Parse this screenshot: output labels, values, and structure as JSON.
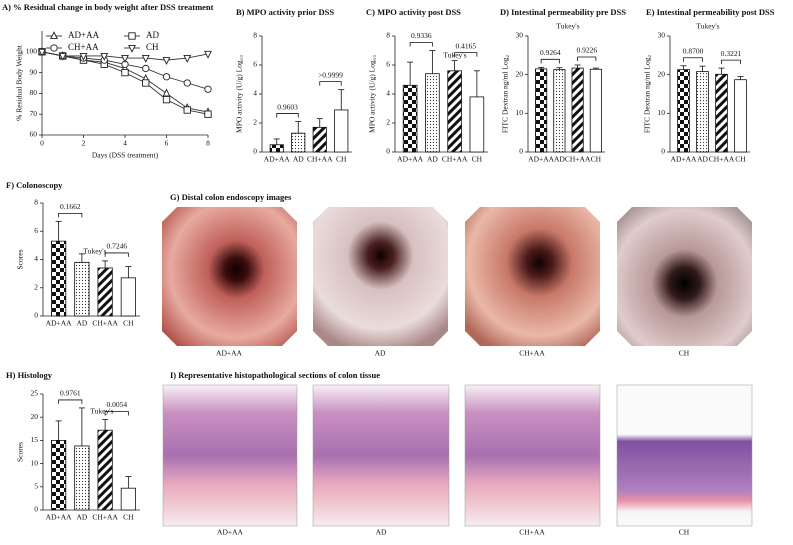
{
  "chart_data": [
    {
      "type": "line",
      "title": "A) % Residual change in body weight after DSS treatment",
      "x_label": "Days (DSS treatment)",
      "y_label": "% Residual Body Weight",
      "x": [
        0,
        1,
        2,
        3,
        4,
        5,
        6,
        7,
        8
      ],
      "xlim": [
        0,
        8
      ],
      "xticks": [
        0,
        2,
        4,
        6,
        8
      ],
      "ylim": [
        60,
        110
      ],
      "yticks": [
        60,
        70,
        80,
        90,
        100
      ],
      "series": [
        {
          "name": "AD+AA",
          "marker": "triangle",
          "color": "#333333",
          "values": [
            100,
            98,
            96,
            95,
            92,
            87,
            80,
            73,
            71
          ]
        },
        {
          "name": "AD",
          "marker": "square",
          "color": "#333333",
          "values": [
            100,
            98,
            96,
            94,
            90,
            85,
            77,
            72,
            70
          ]
        },
        {
          "name": "CH+AA",
          "marker": "circle",
          "color": "#333333",
          "values": [
            100,
            98,
            97,
            96,
            94,
            92,
            88,
            85,
            82
          ]
        },
        {
          "name": "CH",
          "marker": "triangle-down",
          "color": "#333333",
          "values": [
            100,
            98,
            98,
            98,
            97,
            97,
            96,
            97,
            99
          ]
        }
      ]
    },
    {
      "type": "bar",
      "title": "B) MPO activity prior DSS",
      "y_label": "MPO activity (U/g) Log₁₀",
      "categories": [
        "AD+AA",
        "AD",
        "CH+AA",
        "CH"
      ],
      "values": [
        0.5,
        1.3,
        1.7,
        2.9
      ],
      "errors": [
        0.4,
        0.8,
        0.6,
        1.4
      ],
      "ylim": [
        0,
        8
      ],
      "yticks": [
        0,
        2,
        4,
        6,
        8
      ],
      "patterns": [
        "checker",
        "dots",
        "stripes",
        "none"
      ],
      "comparisons": [
        "0.9603",
        ">0.9999"
      ]
    },
    {
      "type": "bar",
      "title": "C) MPO activity post DSS",
      "y_label": "MPO activity (U/g) Log₁₀",
      "categories": [
        "AD+AA",
        "AD",
        "CH+AA",
        "CH"
      ],
      "values": [
        4.6,
        5.4,
        5.6,
        3.8
      ],
      "errors": [
        1.6,
        1.6,
        0.7,
        1.8
      ],
      "ylim": [
        0,
        8
      ],
      "yticks": [
        0,
        2,
        4,
        6,
        8
      ],
      "patterns": [
        "checker",
        "dots",
        "stripes",
        "none"
      ],
      "comparisons": [
        "0.9336",
        "0.4165"
      ],
      "note": "Tukey's"
    },
    {
      "type": "bar",
      "title": "D) Intestinal permeability pre DSS",
      "y_label": "FITC Dextran ng/ml Log₂",
      "categories": [
        "AD+AA",
        "AD",
        "CH+AA",
        "CH"
      ],
      "values": [
        21.5,
        21.3,
        21.7,
        21.4
      ],
      "errors": [
        0.4,
        0.5,
        0.8,
        0.3
      ],
      "ylim": [
        0,
        30
      ],
      "yticks": [
        0,
        10,
        20,
        30
      ],
      "patterns": [
        "checker",
        "dots",
        "stripes",
        "none"
      ],
      "comparisons": [
        "0.9264",
        "0.9226"
      ],
      "note": "Tukey's"
    },
    {
      "type": "bar",
      "title": "E) Intestinal permeability post DSS",
      "y_label": "FITC Dextran ng/ml Log₂",
      "categories": [
        "AD+AA",
        "AD",
        "CH+AA",
        "CH"
      ],
      "values": [
        21.3,
        20.8,
        20.1,
        18.7
      ],
      "errors": [
        1,
        1.4,
        1.6,
        0.8
      ],
      "ylim": [
        0,
        30
      ],
      "yticks": [
        0,
        10,
        20,
        30
      ],
      "patterns": [
        "checker",
        "dots",
        "stripes",
        "none"
      ],
      "comparisons": [
        "0.8700",
        "0.3221"
      ],
      "note": "Tukey's"
    },
    {
      "type": "bar",
      "title": "F) Colonoscopy",
      "y_label": "Scores",
      "categories": [
        "AD+AA",
        "AD",
        "CH+AA",
        "CH"
      ],
      "values": [
        5.3,
        3.8,
        3.4,
        2.7
      ],
      "errors": [
        1.4,
        0.6,
        0.5,
        0.8
      ],
      "ylim": [
        0,
        8
      ],
      "yticks": [
        0,
        2,
        4,
        6,
        8
      ],
      "patterns": [
        "checker",
        "dots",
        "stripes",
        "none"
      ],
      "comparisons": [
        "0.1662",
        "0.7246"
      ],
      "note": "Tukey's"
    },
    {
      "type": "bar",
      "title": "H) Histology",
      "y_label": "Scores",
      "categories": [
        "AD+AA",
        "AD",
        "CH+AA",
        "CH"
      ],
      "values": [
        15,
        13.8,
        17.2,
        4.7
      ],
      "errors": [
        4.2,
        8.2,
        2.3,
        2.5
      ],
      "ylim": [
        0,
        25
      ],
      "yticks": [
        0,
        5,
        10,
        15,
        20,
        25
      ],
      "patterns": [
        "checker",
        "dots",
        "stripes",
        "none"
      ],
      "comparisons": [
        "0.9761",
        "0.0054"
      ],
      "note": "Tukey's"
    }
  ],
  "endoscopy": {
    "title": "G) Distal colon endoscopy images",
    "captions": [
      "AD+AA",
      "AD",
      "CH+AA",
      "CH"
    ]
  },
  "histology": {
    "title": "I) Representative histopathological sections of colon tissue",
    "captions": [
      "AD+AA",
      "AD",
      "CH+AA",
      "CH"
    ]
  }
}
